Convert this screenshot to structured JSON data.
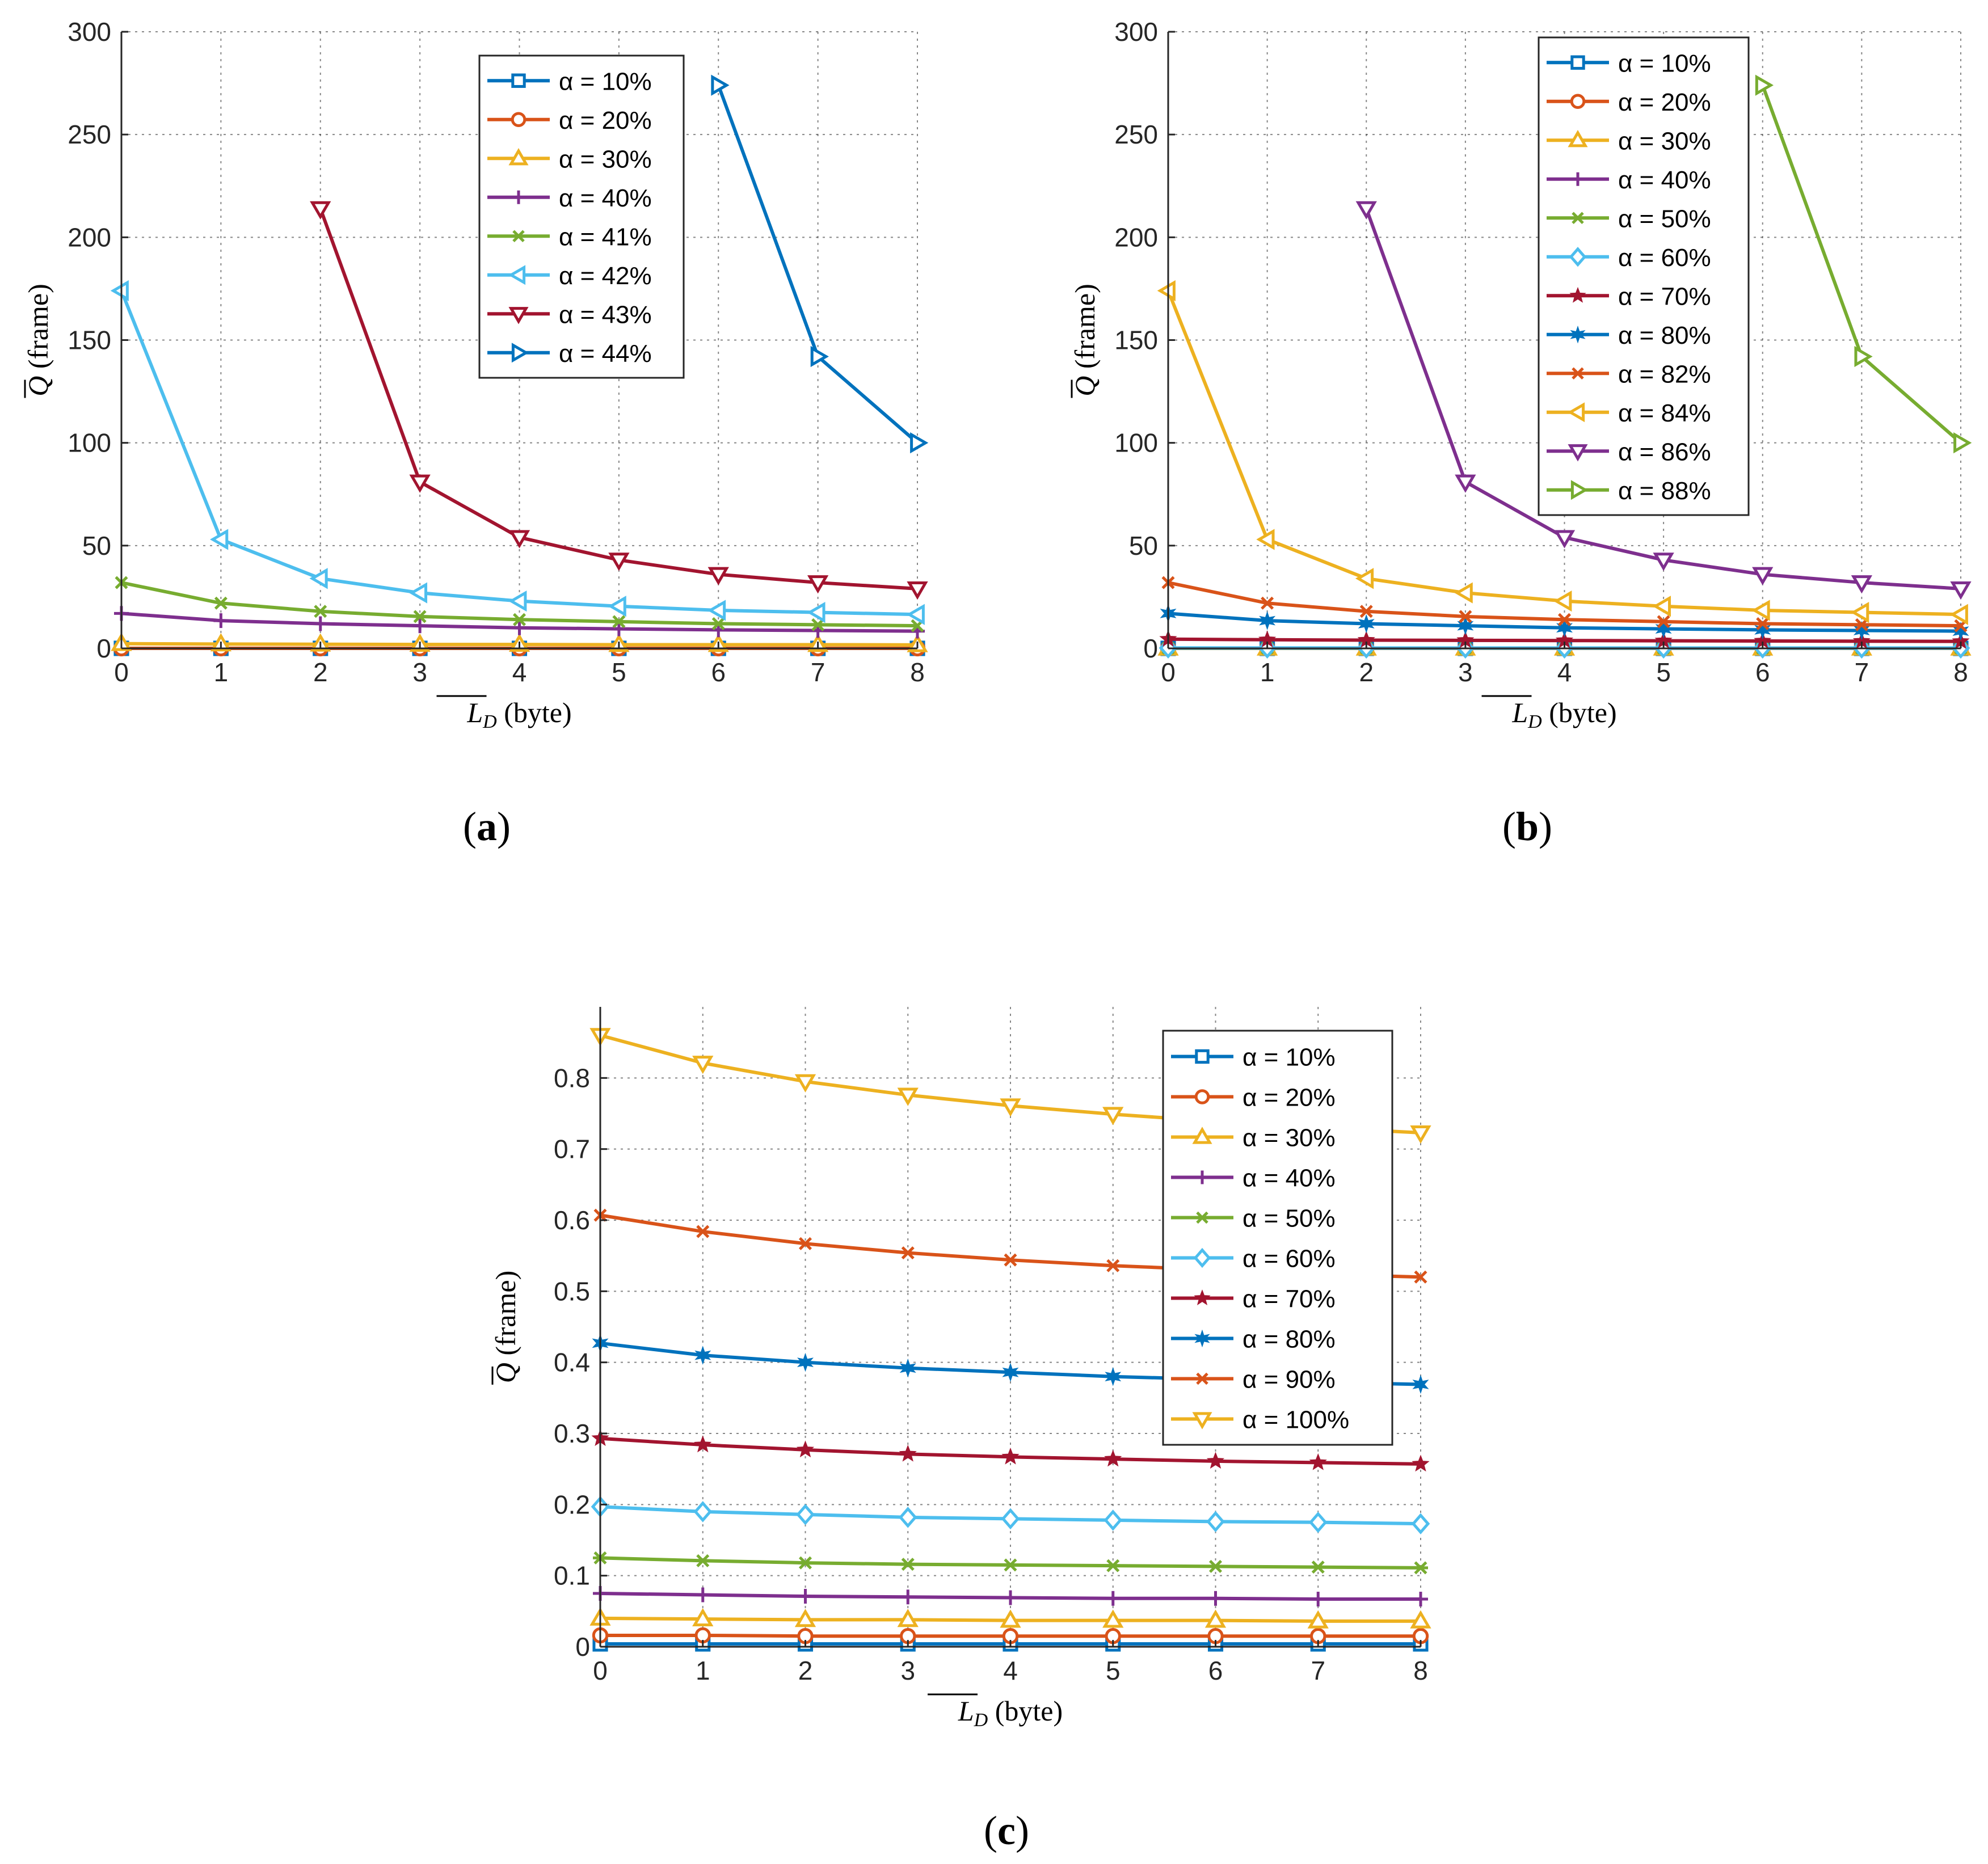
{
  "figure": {
    "panel_labels": [
      "a",
      "b",
      "c"
    ]
  },
  "chart_data": [
    {
      "type": "line",
      "panel": "a",
      "xlabel": "L_D (byte)",
      "ylabel": "Q (frame)",
      "xlim": [
        0,
        8
      ],
      "ylim": [
        0,
        300
      ],
      "xticks": [
        0,
        1,
        2,
        3,
        4,
        5,
        6,
        7,
        8
      ],
      "yticks": [
        0,
        50,
        100,
        150,
        200,
        250,
        300
      ],
      "grid": true,
      "legend": "top-center",
      "series": [
        {
          "name": "α = 10%",
          "color": "#0072BD",
          "marker": "square",
          "x": [
            0,
            1,
            2,
            3,
            4,
            5,
            6,
            7,
            8
          ],
          "y": [
            0.01,
            0.01,
            0.01,
            0.01,
            0.01,
            0.01,
            0.01,
            0.01,
            0.01
          ]
        },
        {
          "name": "α = 20%",
          "color": "#D95319",
          "marker": "circle",
          "x": [
            0,
            1,
            2,
            3,
            4,
            5,
            6,
            7,
            8
          ],
          "y": [
            0.02,
            0.02,
            0.02,
            0.02,
            0.02,
            0.02,
            0.02,
            0.02,
            0.02
          ]
        },
        {
          "name": "α = 30%",
          "color": "#EDB120",
          "marker": "triangle-up",
          "x": [
            0,
            1,
            2,
            3,
            4,
            5,
            6,
            7,
            8
          ],
          "y": [
            2.3,
            2.1,
            2.0,
            1.9,
            1.9,
            1.8,
            1.8,
            1.8,
            1.7
          ]
        },
        {
          "name": "α = 40%",
          "color": "#7E2F8E",
          "marker": "plus",
          "x": [
            0,
            1,
            2,
            3,
            4,
            5,
            6,
            7,
            8
          ],
          "y": [
            17,
            13.5,
            12,
            11,
            10,
            9.5,
            9,
            8.7,
            8.4
          ]
        },
        {
          "name": "α = 41%",
          "color": "#77AC30",
          "marker": "x",
          "x": [
            0,
            1,
            2,
            3,
            4,
            5,
            6,
            7,
            8
          ],
          "y": [
            32,
            22,
            18,
            15.5,
            14,
            13,
            12,
            11.5,
            11
          ]
        },
        {
          "name": "α = 42%",
          "color": "#4DBEEE",
          "marker": "triangle-left",
          "x": [
            0,
            1,
            2,
            3,
            4,
            5,
            6,
            7,
            8
          ],
          "y": [
            174,
            53,
            34,
            27,
            23,
            20.5,
            18.5,
            17.5,
            16.5
          ]
        },
        {
          "name": "α = 43%",
          "color": "#A2142F",
          "marker": "triangle-down",
          "x": [
            2,
            3,
            4,
            5,
            6,
            7,
            8
          ],
          "y": [
            214,
            81,
            54,
            43,
            36,
            32,
            29
          ]
        },
        {
          "name": "α = 44%",
          "color": "#0072BD",
          "marker": "triangle-right",
          "x": [
            6,
            7,
            8
          ],
          "y": [
            274,
            142,
            100
          ]
        }
      ]
    },
    {
      "type": "line",
      "panel": "b",
      "xlabel": "L_D (byte)",
      "ylabel": "Q (frame)",
      "xlim": [
        0,
        8
      ],
      "ylim": [
        0,
        300
      ],
      "xticks": [
        0,
        1,
        2,
        3,
        4,
        5,
        6,
        7,
        8
      ],
      "yticks": [
        0,
        50,
        100,
        150,
        200,
        250,
        300
      ],
      "grid": true,
      "legend": "top-right",
      "series": [
        {
          "name": "α = 10%",
          "color": "#0072BD",
          "marker": "square",
          "x": [
            0,
            1,
            2,
            3,
            4,
            5,
            6,
            7,
            8
          ],
          "y": [
            0.01,
            0.01,
            0.01,
            0.01,
            0.01,
            0.01,
            0.01,
            0.01,
            0.01
          ]
        },
        {
          "name": "α = 20%",
          "color": "#D95319",
          "marker": "circle",
          "x": [
            0,
            1,
            2,
            3,
            4,
            5,
            6,
            7,
            8
          ],
          "y": [
            0.02,
            0.02,
            0.02,
            0.02,
            0.02,
            0.02,
            0.02,
            0.02,
            0.02
          ]
        },
        {
          "name": "α = 30%",
          "color": "#EDB120",
          "marker": "triangle-up",
          "x": [
            0,
            1,
            2,
            3,
            4,
            5,
            6,
            7,
            8
          ],
          "y": [
            0.04,
            0.04,
            0.04,
            0.04,
            0.04,
            0.04,
            0.04,
            0.04,
            0.04
          ]
        },
        {
          "name": "α = 40%",
          "color": "#7E2F8E",
          "marker": "plus",
          "x": [
            0,
            1,
            2,
            3,
            4,
            5,
            6,
            7,
            8
          ],
          "y": [
            0.07,
            0.07,
            0.07,
            0.07,
            0.07,
            0.07,
            0.07,
            0.07,
            0.07
          ]
        },
        {
          "name": "α = 50%",
          "color": "#77AC30",
          "marker": "asterisk",
          "x": [
            0,
            1,
            2,
            3,
            4,
            5,
            6,
            7,
            8
          ],
          "y": [
            0.12,
            0.12,
            0.12,
            0.12,
            0.11,
            0.11,
            0.11,
            0.11,
            0.11
          ]
        },
        {
          "name": "α = 60%",
          "color": "#4DBEEE",
          "marker": "diamond",
          "x": [
            0,
            1,
            2,
            3,
            4,
            5,
            6,
            7,
            8
          ],
          "y": [
            0.2,
            0.19,
            0.19,
            0.18,
            0.18,
            0.18,
            0.18,
            0.17,
            0.17
          ]
        },
        {
          "name": "α = 70%",
          "color": "#A2142F",
          "marker": "star",
          "x": [
            0,
            1,
            2,
            3,
            4,
            5,
            6,
            7,
            8
          ],
          "y": [
            4.5,
            4.2,
            4.0,
            3.9,
            3.8,
            3.7,
            3.6,
            3.5,
            3.4
          ]
        },
        {
          "name": "α = 80%",
          "color": "#0072BD",
          "marker": "hexagram",
          "x": [
            0,
            1,
            2,
            3,
            4,
            5,
            6,
            7,
            8
          ],
          "y": [
            17,
            13.5,
            12,
            11,
            10,
            9.5,
            9,
            8.7,
            8.4
          ]
        },
        {
          "name": "α = 82%",
          "color": "#D95319",
          "marker": "x",
          "x": [
            0,
            1,
            2,
            3,
            4,
            5,
            6,
            7,
            8
          ],
          "y": [
            32,
            22,
            18,
            15.5,
            14,
            13,
            12,
            11.5,
            11
          ]
        },
        {
          "name": "α = 84%",
          "color": "#EDB120",
          "marker": "triangle-left",
          "x": [
            0,
            1,
            2,
            3,
            4,
            5,
            6,
            7,
            8
          ],
          "y": [
            174,
            53,
            34,
            27,
            23,
            20.5,
            18.5,
            17.5,
            16.5
          ]
        },
        {
          "name": "α = 86%",
          "color": "#7E2F8E",
          "marker": "triangle-down",
          "x": [
            2,
            3,
            4,
            5,
            6,
            7,
            8
          ],
          "y": [
            214,
            81,
            54,
            43,
            36,
            32,
            29
          ]
        },
        {
          "name": "α = 88%",
          "color": "#77AC30",
          "marker": "triangle-right",
          "x": [
            6,
            7,
            8
          ],
          "y": [
            274,
            142,
            100
          ]
        }
      ]
    },
    {
      "type": "line",
      "panel": "c",
      "xlabel": "L_D (byte)",
      "ylabel": "Q (frame)",
      "xlim": [
        0,
        8
      ],
      "ylim": [
        0,
        0.9
      ],
      "xticks": [
        0,
        1,
        2,
        3,
        4,
        5,
        6,
        7,
        8
      ],
      "yticks": [
        0,
        0.1,
        0.2,
        0.3,
        0.4,
        0.5,
        0.6,
        0.7,
        0.8
      ],
      "grid": true,
      "legend": "top-right",
      "series": [
        {
          "name": "α = 10%",
          "color": "#0072BD",
          "marker": "square",
          "x": [
            0,
            1,
            2,
            3,
            4,
            5,
            6,
            7,
            8
          ],
          "y": [
            0.004,
            0.004,
            0.004,
            0.004,
            0.004,
            0.004,
            0.004,
            0.004,
            0.004
          ]
        },
        {
          "name": "α = 20%",
          "color": "#D95319",
          "marker": "circle",
          "x": [
            0,
            1,
            2,
            3,
            4,
            5,
            6,
            7,
            8
          ],
          "y": [
            0.016,
            0.016,
            0.015,
            0.015,
            0.015,
            0.015,
            0.015,
            0.015,
            0.015
          ]
        },
        {
          "name": "α = 30%",
          "color": "#EDB120",
          "marker": "triangle-up",
          "x": [
            0,
            1,
            2,
            3,
            4,
            5,
            6,
            7,
            8
          ],
          "y": [
            0.04,
            0.039,
            0.038,
            0.038,
            0.037,
            0.037,
            0.037,
            0.036,
            0.036
          ]
        },
        {
          "name": "α = 40%",
          "color": "#7E2F8E",
          "marker": "plus",
          "x": [
            0,
            1,
            2,
            3,
            4,
            5,
            6,
            7,
            8
          ],
          "y": [
            0.075,
            0.073,
            0.071,
            0.07,
            0.069,
            0.068,
            0.068,
            0.067,
            0.067
          ]
        },
        {
          "name": "α = 50%",
          "color": "#77AC30",
          "marker": "asterisk",
          "x": [
            0,
            1,
            2,
            3,
            4,
            5,
            6,
            7,
            8
          ],
          "y": [
            0.125,
            0.121,
            0.118,
            0.116,
            0.115,
            0.114,
            0.113,
            0.112,
            0.111
          ]
        },
        {
          "name": "α = 60%",
          "color": "#4DBEEE",
          "marker": "diamond",
          "x": [
            0,
            1,
            2,
            3,
            4,
            5,
            6,
            7,
            8
          ],
          "y": [
            0.197,
            0.19,
            0.186,
            0.182,
            0.18,
            0.178,
            0.176,
            0.175,
            0.173
          ]
        },
        {
          "name": "α = 70%",
          "color": "#A2142F",
          "marker": "star",
          "x": [
            0,
            1,
            2,
            3,
            4,
            5,
            6,
            7,
            8
          ],
          "y": [
            0.293,
            0.284,
            0.277,
            0.271,
            0.267,
            0.264,
            0.261,
            0.259,
            0.257
          ]
        },
        {
          "name": "α = 80%",
          "color": "#0072BD",
          "marker": "hexagram",
          "x": [
            0,
            1,
            2,
            3,
            4,
            5,
            6,
            7,
            8
          ],
          "y": [
            0.427,
            0.41,
            0.4,
            0.392,
            0.386,
            0.38,
            0.376,
            0.372,
            0.369
          ]
        },
        {
          "name": "α = 90%",
          "color": "#D95319",
          "marker": "x",
          "x": [
            0,
            1,
            2,
            3,
            4,
            5,
            6,
            7,
            8
          ],
          "y": [
            0.607,
            0.584,
            0.567,
            0.554,
            0.544,
            0.536,
            0.53,
            0.524,
            0.52
          ]
        },
        {
          "name": "α = 100%",
          "color": "#EDB120",
          "marker": "triangle-down",
          "x": [
            0,
            1,
            2,
            3,
            4,
            5,
            6,
            7,
            8
          ],
          "y": [
            0.86,
            0.821,
            0.795,
            0.776,
            0.761,
            0.749,
            0.739,
            0.73,
            0.723
          ]
        }
      ]
    }
  ]
}
